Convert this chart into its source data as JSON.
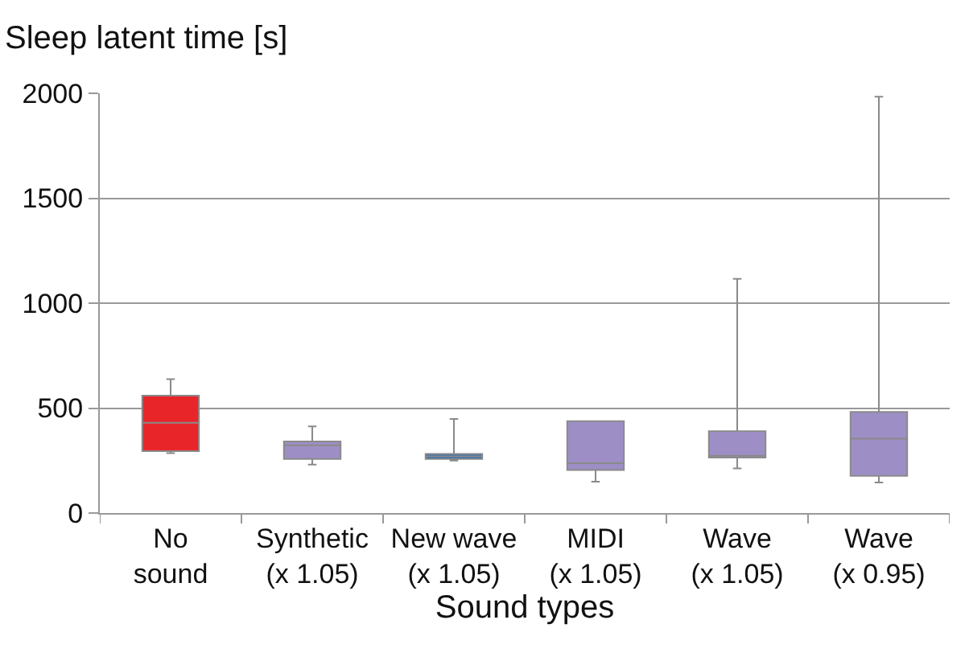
{
  "chart_data": {
    "type": "box",
    "ylabel": "Sleep latent time [s]",
    "xlabel": "Sound types",
    "categories": [
      "No sound",
      "Synthetic (x 1.05)",
      "New wave (x 1.05)",
      "MIDI (x 1.05)",
      "Wave (x 1.05)",
      "Wave (x 0.95)"
    ],
    "colors": [
      "#e8262a",
      "#9e8ec6",
      "#2e6db4",
      "#9e8ec6",
      "#9e8ec6",
      "#9e8ec6"
    ],
    "boxes": [
      {
        "low": 285,
        "q1": 295,
        "median": 430,
        "q3": 559,
        "high": 638
      },
      {
        "low": 231,
        "q1": 258,
        "median": 323,
        "q3": 341,
        "high": 413
      },
      {
        "low": 250,
        "q1": 258,
        "median": 270,
        "q3": 282,
        "high": 448
      },
      {
        "low": 149,
        "q1": 205,
        "median": 238,
        "q3": 438,
        "high": 438
      },
      {
        "low": 213,
        "q1": 264,
        "median": 273,
        "q3": 390,
        "high": 1116
      },
      {
        "low": 146,
        "q1": 177,
        "median": 354,
        "q3": 482,
        "high": 1984
      }
    ],
    "ylim": [
      0,
      2000
    ],
    "yticks": [
      0,
      500,
      1000,
      1500,
      2000
    ],
    "grid": "y",
    "legend": false
  }
}
